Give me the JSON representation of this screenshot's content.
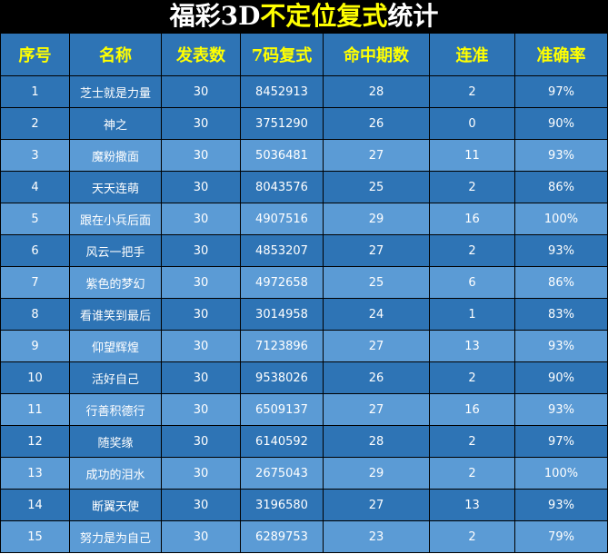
{
  "title": {
    "part1": "福彩3D",
    "part2": "不定位复式",
    "part3": "统计"
  },
  "colors": {
    "header": "#2e74b5",
    "row_dark": "#2e74b5",
    "row_light": "#5b9bd5",
    "header_text": "#ffff00"
  },
  "columns": [
    "序号",
    "名称",
    "发表数",
    "7码复式",
    "命中期数",
    "连准",
    "准确率"
  ],
  "rows": [
    [
      "1",
      "芝士就是力量",
      "30",
      "8452913",
      "28",
      "2",
      "97%"
    ],
    [
      "2",
      "神之",
      "30",
      "3751290",
      "26",
      "0",
      "90%"
    ],
    [
      "3",
      "魔粉撒面",
      "30",
      "5036481",
      "27",
      "11",
      "93%"
    ],
    [
      "4",
      "天天连萌",
      "30",
      "8043576",
      "25",
      "2",
      "86%"
    ],
    [
      "5",
      "跟在小兵后面",
      "30",
      "4907516",
      "29",
      "16",
      "100%"
    ],
    [
      "6",
      "风云一把手",
      "30",
      "4853207",
      "27",
      "2",
      "93%"
    ],
    [
      "7",
      "紫色的梦幻",
      "30",
      "4972658",
      "25",
      "6",
      "86%"
    ],
    [
      "8",
      "看谁笑到最后",
      "30",
      "3014958",
      "24",
      "1",
      "83%"
    ],
    [
      "9",
      "仰望辉煌",
      "30",
      "7123896",
      "27",
      "13",
      "93%"
    ],
    [
      "10",
      "活好自己",
      "30",
      "9538026",
      "26",
      "2",
      "90%"
    ],
    [
      "11",
      "行善积德行",
      "30",
      "6509137",
      "27",
      "16",
      "93%"
    ],
    [
      "12",
      "随奖缘",
      "30",
      "6140592",
      "28",
      "2",
      "97%"
    ],
    [
      "13",
      "成功的泪水",
      "30",
      "2675043",
      "29",
      "2",
      "100%"
    ],
    [
      "14",
      "断翼天使",
      "30",
      "3196580",
      "27",
      "13",
      "93%"
    ],
    [
      "15",
      "努力是为自己",
      "30",
      "6289753",
      "23",
      "2",
      "79%"
    ]
  ]
}
